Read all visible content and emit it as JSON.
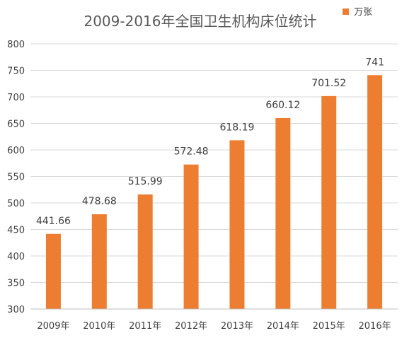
{
  "chart_data": {
    "type": "bar",
    "title": "2009-2016年全国卫生机构床位统计",
    "categories": [
      "2009年",
      "2010年",
      "2011年",
      "2012年",
      "2013年",
      "2014年",
      "2015年",
      "2016年"
    ],
    "series": [
      {
        "name": "万张",
        "values": [
          441.66,
          478.68,
          515.99,
          572.48,
          618.19,
          660.12,
          701.52,
          741
        ],
        "labels": [
          "441.66",
          "478.68",
          "515.99",
          "572.48",
          "618.19",
          "660.12",
          "701.52",
          "741"
        ]
      }
    ],
    "ylim": [
      300,
      800
    ],
    "yticks": [
      300,
      350,
      400,
      450,
      500,
      550,
      600,
      650,
      700,
      750,
      800
    ],
    "grid": true,
    "legend": "top-right",
    "bar_color": "#ED7D31"
  }
}
